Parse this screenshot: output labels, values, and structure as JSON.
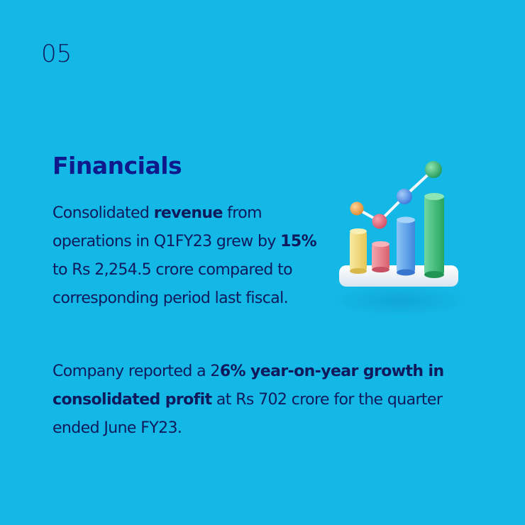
{
  "slide": {
    "number": "05",
    "heading": "Financials",
    "para1": {
      "t1": "Consolidated ",
      "b1": "revenue",
      "t2": " from operations in Q1FY23 grew by ",
      "b2": "15%",
      "t3": " to Rs 2,254.5 crore compared to corresponding period last fiscal."
    },
    "para2": {
      "t1": "Company reported a 2",
      "b1": "6% year-on-year growth in consolidated profit",
      "t2": " at Rs 702 crore for the quarter ended June FY23."
    }
  },
  "illustration": {
    "icon": "bar-chart-growth-icon",
    "colors": {
      "background": "#14b8e6",
      "text": "#0e1a5c",
      "bar_yellow": "#f3dc7c",
      "bar_pink": "#e8828c",
      "bar_blue": "#5aa8ee",
      "bar_green": "#3fbf7a",
      "dot_orange": "#f0a24c",
      "dot_pink": "#e56a7c",
      "dot_blue": "#4e8ee8",
      "dot_green": "#36b36a"
    }
  }
}
